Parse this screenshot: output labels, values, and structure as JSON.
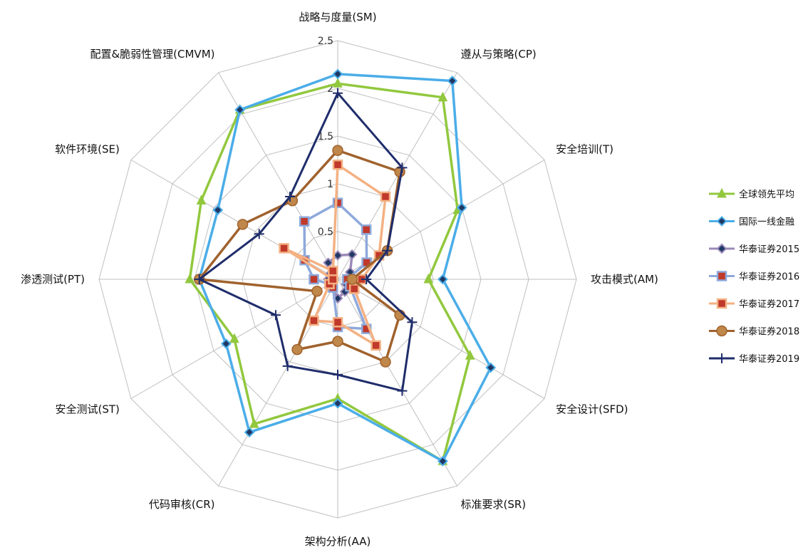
{
  "chart_data": {
    "type": "radar",
    "axes": [
      "战略与度量(SM)",
      "遵从与策略(CP)",
      "安全培训(T)",
      "攻击模式(AM)",
      "安全设计(SFD)",
      "标准要求(SR)",
      "架构分析(AA)",
      "代码审核(CR)",
      "安全测试(ST)",
      "渗透测试(PT)",
      "软件环境(SE)",
      "配置&脆弱性管理(CMVM)"
    ],
    "ticks": [
      "0",
      "0.5",
      "1",
      "1.5",
      "2",
      "2.5"
    ],
    "rmax": 2.5,
    "grid": true,
    "legend_position": "right",
    "series": [
      {
        "name": "全球领先平均",
        "color": "#92C83E",
        "marker": "triangle",
        "values": [
          2.05,
          2.2,
          1.45,
          0.95,
          1.6,
          2.2,
          1.25,
          1.75,
          1.25,
          1.55,
          1.65,
          2.05
        ]
      },
      {
        "name": "国际一线金融",
        "color": "#4BADE8",
        "marker": "diamond",
        "values": [
          2.15,
          2.4,
          1.5,
          1.1,
          1.85,
          2.2,
          1.3,
          1.85,
          1.35,
          1.45,
          1.45,
          2.05
        ]
      },
      {
        "name": "华泰证券2015",
        "color": "#9B89B7",
        "marker": "diamond",
        "values": [
          0.25,
          0.3,
          0.15,
          0.1,
          0.1,
          0.15,
          0.2,
          0.1,
          0.1,
          0.1,
          0.1,
          0.2
        ]
      },
      {
        "name": "华泰证券2016",
        "color": "#8EA9DB",
        "marker": "square",
        "values": [
          0.8,
          0.6,
          0.35,
          0.1,
          0.15,
          0.6,
          0.5,
          0.1,
          0.1,
          0.25,
          0.4,
          0.7
        ]
      },
      {
        "name": "华泰证券2017",
        "color": "#F4B183",
        "marker": "square",
        "values": [
          1.2,
          1.0,
          0.5,
          0.25,
          0.2,
          0.8,
          0.45,
          0.5,
          0.1,
          0.05,
          0.65,
          0.1
        ]
      },
      {
        "name": "华泰证券2018",
        "color": "#A0622D",
        "marker": "circle",
        "values": [
          1.35,
          1.3,
          0.6,
          0.15,
          0.75,
          1.0,
          0.65,
          0.85,
          0.25,
          1.45,
          1.15,
          0.95
        ]
      },
      {
        "name": "华泰证券2019",
        "color": "#1F2D6B",
        "marker": "plus",
        "values": [
          1.95,
          1.35,
          0.6,
          0.3,
          0.9,
          1.35,
          1.0,
          1.05,
          0.75,
          1.45,
          0.95,
          1.0
        ]
      }
    ]
  }
}
